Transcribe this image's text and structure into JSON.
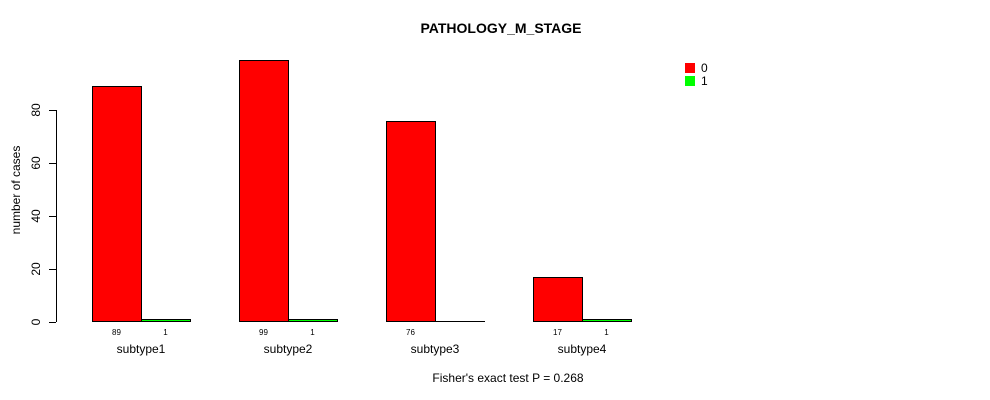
{
  "chart_data": {
    "type": "bar",
    "title": "PATHOLOGY_M_STAGE",
    "ylabel": "number of cases",
    "xlabel": "",
    "categories": [
      "subtype1",
      "subtype2",
      "subtype3",
      "subtype4"
    ],
    "series": [
      {
        "name": "0",
        "color": "#FF0000",
        "values": [
          89,
          99,
          76,
          17
        ]
      },
      {
        "name": "1",
        "color": "#00FF00",
        "values": [
          1,
          1,
          0,
          1
        ]
      }
    ],
    "value_labels": [
      [
        "89",
        "1"
      ],
      [
        "99",
        "1"
      ],
      [
        "76",
        ""
      ],
      [
        "17",
        "1"
      ]
    ],
    "yticks": [
      0,
      20,
      40,
      60,
      80
    ],
    "ylim": [
      0,
      100
    ],
    "grid": false,
    "legend_position": "right",
    "annotation": "Fisher's exact test P = 0.268"
  }
}
